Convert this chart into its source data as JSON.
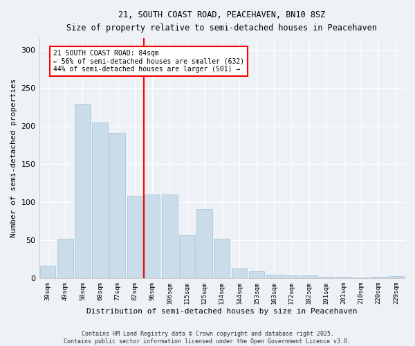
{
  "title1": "21, SOUTH COAST ROAD, PEACEHAVEN, BN10 8SZ",
  "title2": "Size of property relative to semi-detached houses in Peacehaven",
  "xlabel": "Distribution of semi-detached houses by size in Peacehaven",
  "ylabel": "Number of semi-detached properties",
  "categories": [
    "39sqm",
    "49sqm",
    "58sqm",
    "68sqm",
    "77sqm",
    "87sqm",
    "96sqm",
    "106sqm",
    "115sqm",
    "125sqm",
    "134sqm",
    "144sqm",
    "153sqm",
    "163sqm",
    "172sqm",
    "182sqm",
    "191sqm",
    "201sqm",
    "210sqm",
    "220sqm",
    "229sqm"
  ],
  "values": [
    17,
    52,
    229,
    204,
    191,
    108,
    110,
    110,
    57,
    91,
    52,
    13,
    9,
    5,
    4,
    4,
    2,
    2,
    1,
    2,
    3
  ],
  "bar_color": "#c9dcea",
  "bar_edge_color": "#a0bfd4",
  "vline_x_idx": 5.5,
  "annotation_title": "21 SOUTH COAST ROAD: 84sqm",
  "annotation_line1": "← 56% of semi-detached houses are smaller (632)",
  "annotation_line2": "44% of semi-detached houses are larger (501) →",
  "footer1": "Contains HM Land Registry data © Crown copyright and database right 2025.",
  "footer2": "Contains public sector information licensed under the Open Government Licence v3.0.",
  "ylim": [
    0,
    315
  ],
  "yticks": [
    0,
    50,
    100,
    150,
    200,
    250,
    300
  ],
  "bg_color": "#eef2f7",
  "plot_bg_color": "#eef2f7",
  "title1_fontsize": 9,
  "title2_fontsize": 8.5
}
